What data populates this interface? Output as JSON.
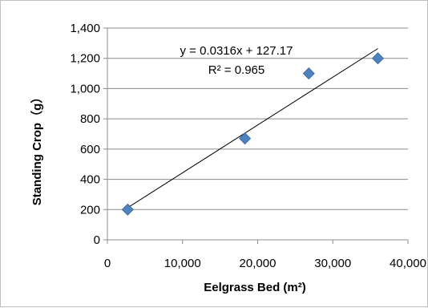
{
  "chart_data": {
    "type": "scatter",
    "xlabel": "Eelgrass Bed (m²)",
    "ylabel": "Standing Crop（g）",
    "xlim": [
      0,
      40000
    ],
    "ylim": [
      0,
      1400
    ],
    "x_ticks": [
      "0",
      "10,000",
      "20,000",
      "30,000",
      "40,000"
    ],
    "y_ticks": [
      "0",
      "200",
      "400",
      "600",
      "800",
      "1,000",
      "1,200",
      "1,400"
    ],
    "grid": "horizontal",
    "marker": "diamond",
    "series": [
      {
        "x": [
          2700,
          18300,
          26800,
          36000
        ],
        "y": [
          200,
          670,
          1100,
          1200
        ],
        "color": "#4f81bd"
      }
    ],
    "trendline": {
      "slope": 0.0316,
      "intercept": 127.17,
      "x_range": [
        2700,
        36000
      ],
      "color": "#000000",
      "equation": "y = 0.0316x + 127.17",
      "r_squared": "R² = 0.965"
    }
  }
}
